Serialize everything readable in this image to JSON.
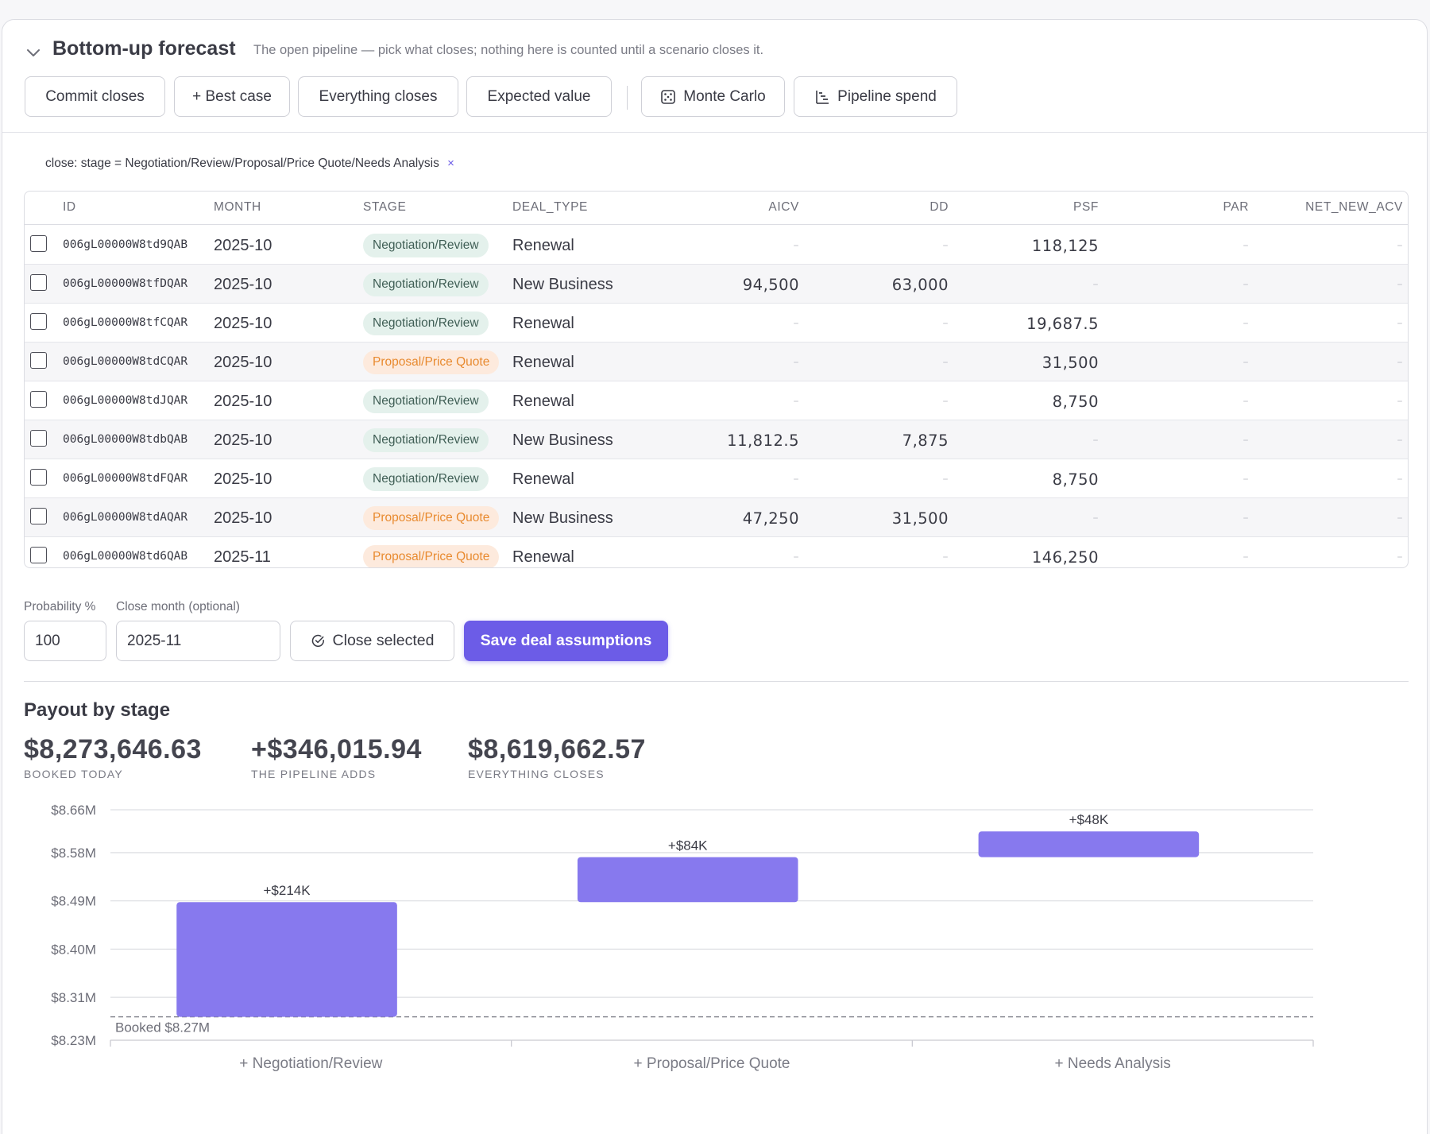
{
  "header": {
    "title": "Bottom-up forecast",
    "subtitle": "The open pipeline — pick what closes; nothing here is counted until a scenario closes it."
  },
  "scenario_buttons": [
    {
      "label": "Commit closes",
      "icon": ""
    },
    {
      "label": "+ Best case",
      "icon": ""
    },
    {
      "label": "Everything closes",
      "icon": ""
    },
    {
      "label": "Expected value",
      "icon": ""
    },
    {
      "label": "Monte Carlo",
      "icon": "dice-icon"
    },
    {
      "label": "Pipeline spend",
      "icon": "waterfall-icon"
    }
  ],
  "filter": {
    "text": "close: stage = Negotiation/Review/Proposal/Price Quote/Needs Analysis",
    "remove": "×"
  },
  "table": {
    "columns": [
      "ID",
      "MONTH",
      "STAGE",
      "DEAL_TYPE",
      "AICV",
      "DD",
      "PSF",
      "PAR",
      "NET_NEW_ACV"
    ],
    "dash": "–",
    "rows": [
      {
        "id": "006gL00000W8td9QAB",
        "month": "2025-10",
        "stage": "Negotiation/Review",
        "stage_kind": "neg",
        "deal_type": "Renewal",
        "aicv": "",
        "dd": "",
        "psf": "118,125",
        "par": "",
        "net_new_acv": "",
        "checked": false
      },
      {
        "id": "006gL00000W8tfDQAR",
        "month": "2025-10",
        "stage": "Negotiation/Review",
        "stage_kind": "neg",
        "deal_type": "New Business",
        "aicv": "94,500",
        "dd": "63,000",
        "psf": "",
        "par": "",
        "net_new_acv": "",
        "checked": false
      },
      {
        "id": "006gL00000W8tfCQAR",
        "month": "2025-10",
        "stage": "Negotiation/Review",
        "stage_kind": "neg",
        "deal_type": "Renewal",
        "aicv": "",
        "dd": "",
        "psf": "19,687.5",
        "par": "",
        "net_new_acv": "",
        "checked": false
      },
      {
        "id": "006gL00000W8tdCQAR",
        "month": "2025-10",
        "stage": "Proposal/Price Quote",
        "stage_kind": "prop",
        "deal_type": "Renewal",
        "aicv": "",
        "dd": "",
        "psf": "31,500",
        "par": "",
        "net_new_acv": "",
        "checked": false
      },
      {
        "id": "006gL00000W8tdJQAR",
        "month": "2025-10",
        "stage": "Negotiation/Review",
        "stage_kind": "neg",
        "deal_type": "Renewal",
        "aicv": "",
        "dd": "",
        "psf": "8,750",
        "par": "",
        "net_new_acv": "",
        "checked": false
      },
      {
        "id": "006gL00000W8tdbQAB",
        "month": "2025-10",
        "stage": "Negotiation/Review",
        "stage_kind": "neg",
        "deal_type": "New Business",
        "aicv": "11,812.5",
        "dd": "7,875",
        "psf": "",
        "par": "",
        "net_new_acv": "",
        "checked": false
      },
      {
        "id": "006gL00000W8tdFQAR",
        "month": "2025-10",
        "stage": "Negotiation/Review",
        "stage_kind": "neg",
        "deal_type": "Renewal",
        "aicv": "",
        "dd": "",
        "psf": "8,750",
        "par": "",
        "net_new_acv": "",
        "checked": false
      },
      {
        "id": "006gL00000W8tdAQAR",
        "month": "2025-10",
        "stage": "Proposal/Price Quote",
        "stage_kind": "prop",
        "deal_type": "New Business",
        "aicv": "47,250",
        "dd": "31,500",
        "psf": "",
        "par": "",
        "net_new_acv": "",
        "checked": false
      },
      {
        "id": "006gL00000W8td6QAB",
        "month": "2025-11",
        "stage": "Proposal/Price Quote",
        "stage_kind": "prop",
        "deal_type": "Renewal",
        "aicv": "",
        "dd": "",
        "psf": "146,250",
        "par": "",
        "net_new_acv": "",
        "checked": false
      }
    ]
  },
  "assumptions": {
    "probability_label": "Probability %",
    "probability_value": "100",
    "close_month_label": "Close month (optional)",
    "close_month_value": "2025-11",
    "close_selected_label": "Close selected",
    "save_label": "Save deal assumptions"
  },
  "payout": {
    "title": "Payout by stage",
    "stats": [
      {
        "value": "$8,273,646.63",
        "caption": "BOOKED TODAY"
      },
      {
        "value": "+$346,015.94",
        "caption": "THE PIPELINE ADDS"
      },
      {
        "value": "$8,619,662.57",
        "caption": "EVERYTHING CLOSES"
      }
    ]
  },
  "colors": {
    "accent": "#6c5ce7",
    "bar": "#8779ee",
    "neg_pill_bg": "#e4f1ec",
    "prop_pill_bg": "#fdeadd",
    "prop_pill_text": "#e88a2f"
  },
  "chart_data": {
    "type": "bar",
    "subtype": "waterfall",
    "title": "",
    "xlabel": "",
    "ylabel": "",
    "categories": [
      "+ Negotiation/Review",
      "+ Proposal/Price Quote",
      "+ Needs Analysis"
    ],
    "base": 8273646.63,
    "base_label": "Booked $8.27M",
    "deltas": [
      214000,
      84000,
      48000
    ],
    "data_labels": [
      "+$214K",
      "+$84K",
      "+$48K"
    ],
    "yticks": [
      8230000,
      8310000,
      8400000,
      8490000,
      8580000,
      8660000
    ],
    "ytick_labels": [
      "$8.23M",
      "$8.31M",
      "$8.40M",
      "$8.49M",
      "$8.58M",
      "$8.66M"
    ],
    "ylim": [
      8230000,
      8660000
    ],
    "grid": true,
    "legend": "none"
  }
}
